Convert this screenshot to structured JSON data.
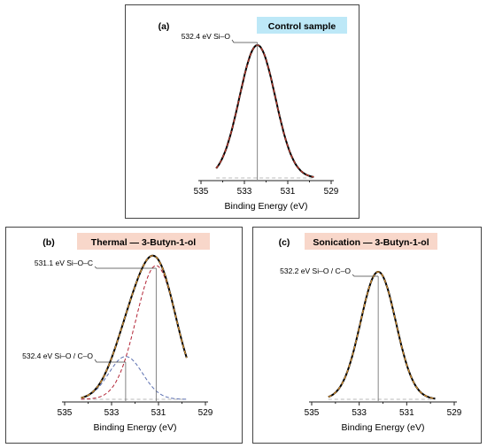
{
  "chart_data": [
    {
      "type": "line",
      "panel_label": "(a)",
      "title": "Control sample",
      "title_bg": "#bde8f7",
      "xlabel": "Binding Energy (eV)",
      "x_ticks": [
        535,
        533,
        531,
        529
      ],
      "xlim": [
        535,
        529
      ],
      "x_reversed": true,
      "y_axis_shown": false,
      "envelope_color": "#000000",
      "fit_color": "#c0392b",
      "background_color": "#b8b8b8",
      "series": [
        {
          "name": "Si–O",
          "center": 532.4,
          "fwhm": 1.95,
          "amplitude": 1.0,
          "color": "#c0392b",
          "style": "dashed"
        }
      ],
      "annotations": [
        {
          "text": "532.4 eV Si–O",
          "x": 532.4
        }
      ]
    },
    {
      "type": "line",
      "panel_label": "(b)",
      "title": "Thermal — 3-Butyn-1-ol",
      "title_bg": "#f8d7ca",
      "xlabel": "Binding Energy (eV)",
      "x_ticks": [
        535,
        533,
        531,
        529
      ],
      "xlim": [
        535,
        529
      ],
      "x_reversed": true,
      "y_axis_shown": false,
      "envelope_color": "#000000",
      "fit_color": "#d9912f",
      "background_color": "#b8b8b8",
      "series": [
        {
          "name": "Si–O–C",
          "center": 531.1,
          "fwhm": 2.0,
          "amplitude": 1.0,
          "color": "#b22234",
          "style": "dashed"
        },
        {
          "name": "Si–O / C–O",
          "center": 532.4,
          "fwhm": 1.7,
          "amplitude": 0.32,
          "color": "#5b6fb0",
          "style": "dashed"
        }
      ],
      "annotations": [
        {
          "text": "531.1 eV Si–O–C",
          "x": 531.1
        },
        {
          "text": "532.4 eV Si–O / C–O",
          "x": 532.4
        }
      ]
    },
    {
      "type": "line",
      "panel_label": "(c)",
      "title": "Sonication — 3-Butyn-1-ol",
      "title_bg": "#f8d7ca",
      "xlabel": "Binding Energy (eV)",
      "x_ticks": [
        535,
        533,
        531,
        529
      ],
      "xlim": [
        535,
        529
      ],
      "x_reversed": true,
      "y_axis_shown": false,
      "envelope_color": "#000000",
      "fit_color": "#d9912f",
      "background_color": "#b8b8b8",
      "series": [
        {
          "name": "Si–O / C–O",
          "center": 532.2,
          "fwhm": 1.75,
          "amplitude": 1.0,
          "color": "#d9912f",
          "style": "dashed"
        }
      ],
      "annotations": [
        {
          "text": "532.2 eV Si–O / C–O",
          "x": 532.2
        }
      ]
    }
  ]
}
